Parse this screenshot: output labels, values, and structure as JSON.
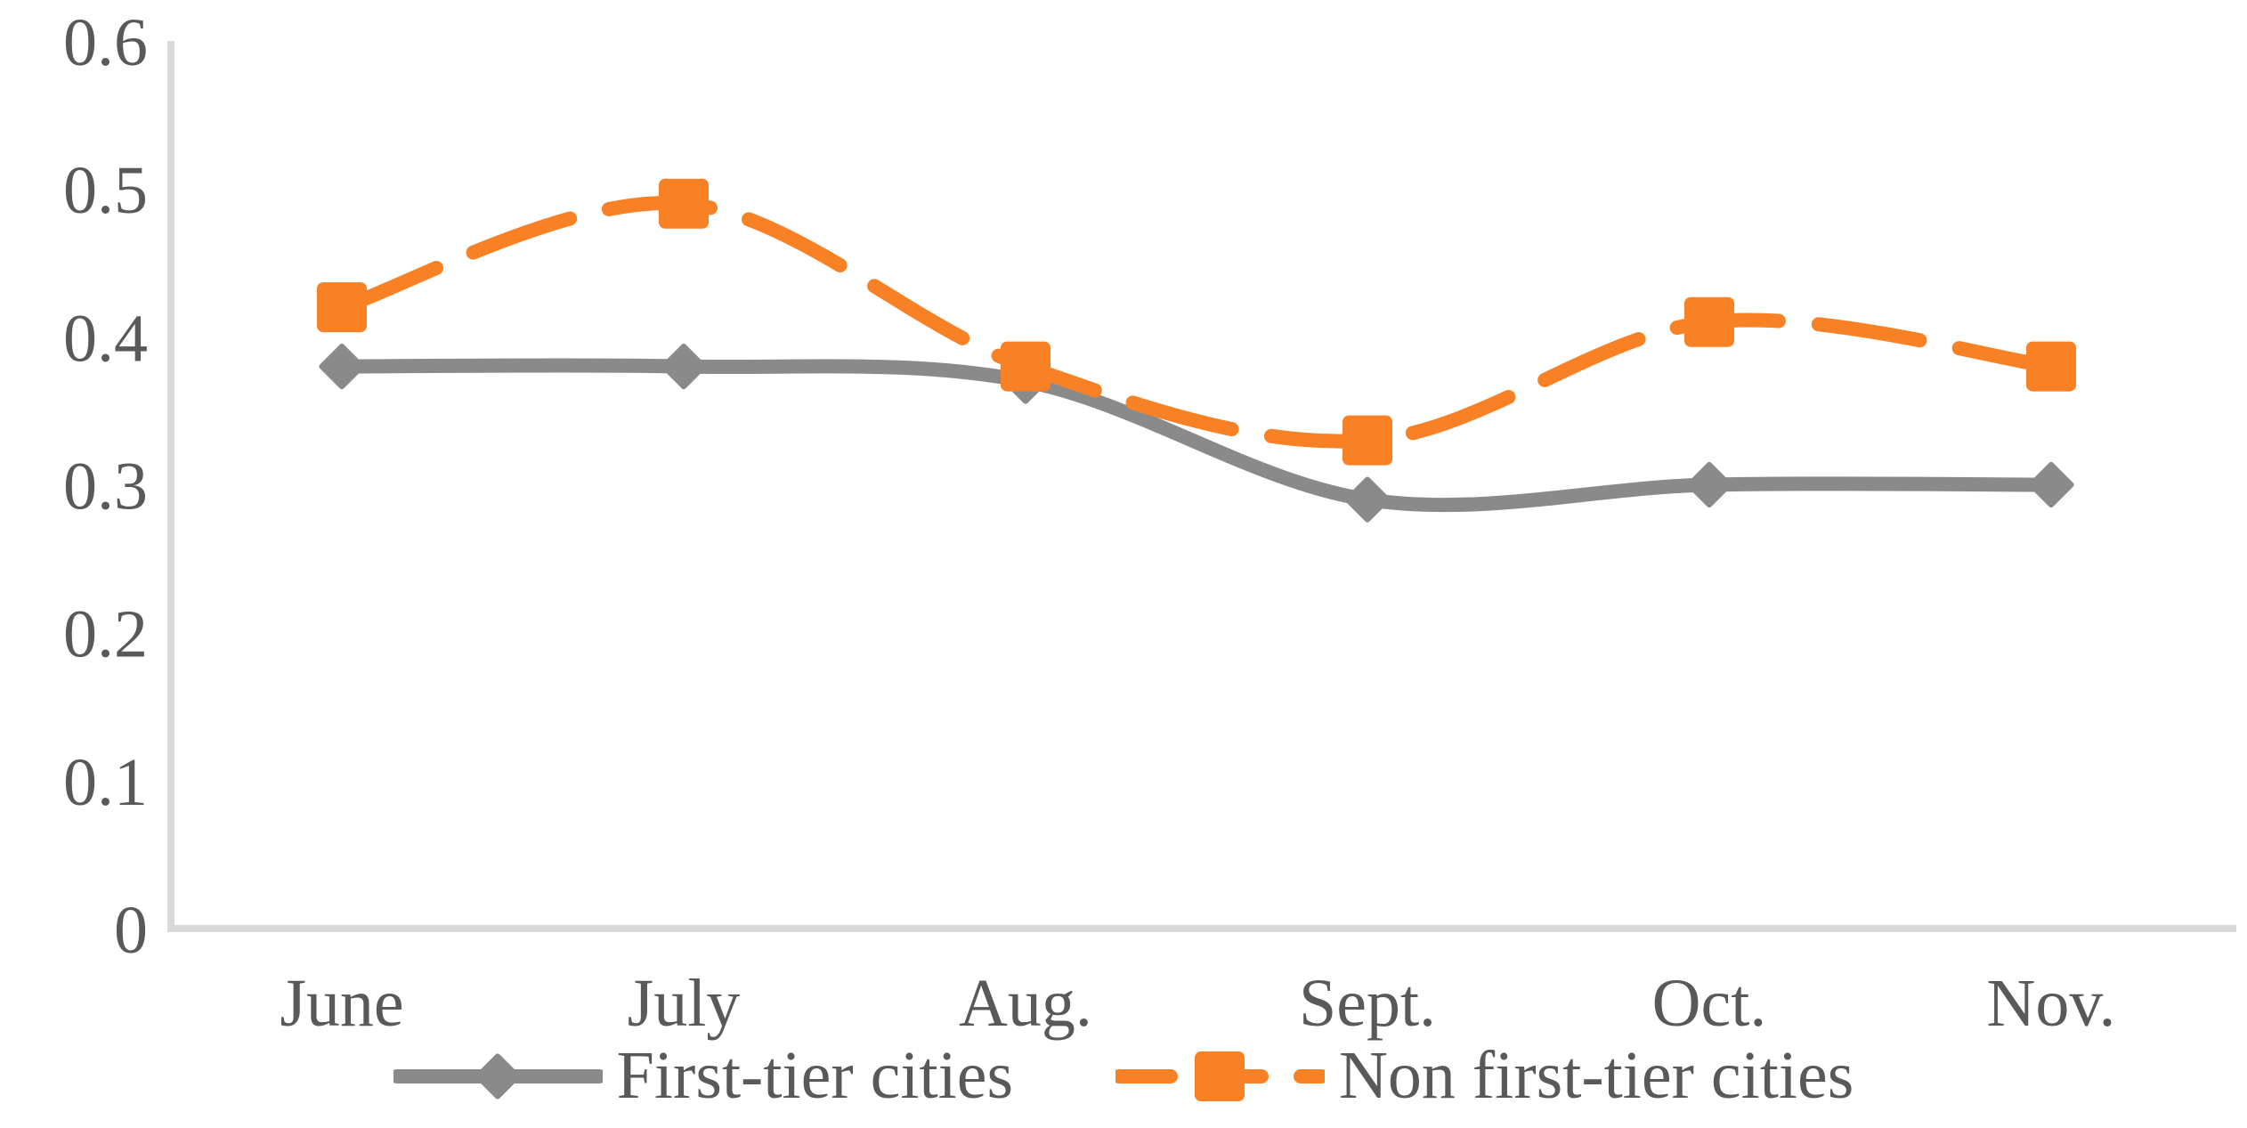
{
  "page": {
    "background_color": "#ffffff",
    "text_color": "#595959",
    "axis_color": "#d9d9d9"
  },
  "chart_data": {
    "type": "line",
    "smoothed": true,
    "grid": false,
    "title": "",
    "xlabel": "",
    "ylabel": "",
    "ylim": [
      0,
      0.6
    ],
    "y_ticks": [
      {
        "value": 0.6,
        "label": "0.6"
      },
      {
        "value": 0.5,
        "label": "0.5"
      },
      {
        "value": 0.4,
        "label": "0.4"
      },
      {
        "value": 0.3,
        "label": "0.3"
      },
      {
        "value": 0.2,
        "label": "0.2"
      },
      {
        "value": 0.1,
        "label": "0.1"
      },
      {
        "value": 0,
        "label": "0"
      }
    ],
    "categories": [
      "June",
      "July",
      "Aug.",
      "Sept.",
      "Oct.",
      "Nov."
    ],
    "series": [
      {
        "name": "First-tier cities",
        "color": "#8a8a8a",
        "line_style": "solid",
        "marker": "diamond",
        "values": [
          0.38,
          0.38,
          0.37,
          0.29,
          0.3,
          0.3
        ]
      },
      {
        "name": "Non first-tier cities",
        "color": "#f88125",
        "line_style": "dashed",
        "marker": "square",
        "values": [
          0.42,
          0.49,
          0.38,
          0.33,
          0.41,
          0.38
        ]
      }
    ],
    "legend_position": "bottom"
  }
}
